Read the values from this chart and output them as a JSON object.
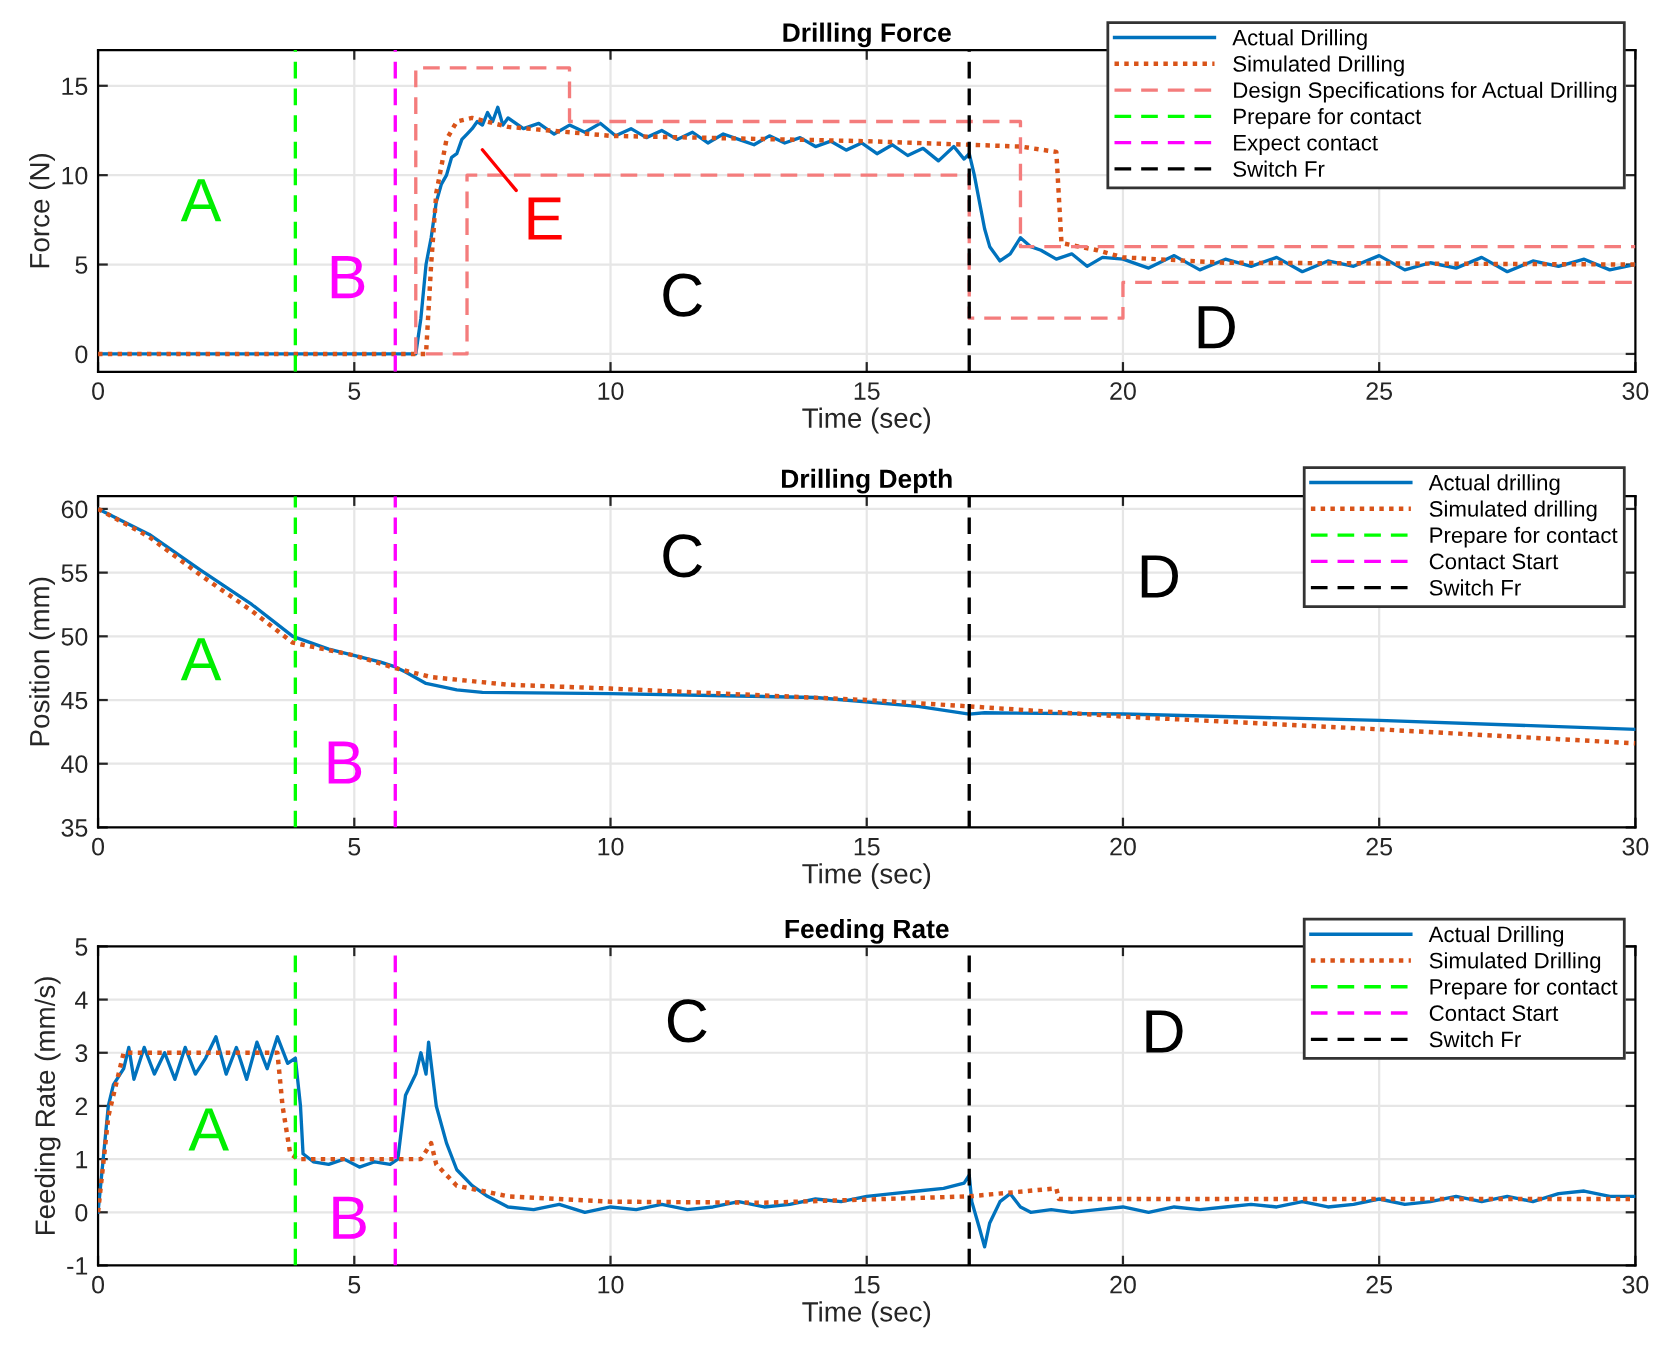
{
  "chart_data": [
    {
      "type": "line",
      "title": "Drilling Force",
      "xlabel": "Time (sec)",
      "ylabel": "Force (N)",
      "xlim": [
        0,
        30
      ],
      "ylim": [
        -1,
        17
      ],
      "xticks": [
        0,
        5,
        10,
        15,
        20,
        25,
        30
      ],
      "yticks": [
        0,
        5,
        10,
        15
      ],
      "grid": true,
      "legend": "top right",
      "marker": "none",
      "series": [
        {
          "name": "Actual Drilling",
          "color": "#0072bd",
          "line_style": "solid",
          "x": [
            0,
            6.2,
            6.3,
            6.4,
            6.5,
            6.6,
            6.7,
            6.8,
            6.9,
            7.0,
            7.1,
            7.2,
            7.3,
            7.4,
            7.5,
            7.6,
            7.7,
            7.8,
            7.9,
            8.0,
            8.3,
            8.6,
            8.9,
            9.2,
            9.5,
            9.8,
            10.1,
            10.4,
            10.7,
            11.0,
            11.3,
            11.6,
            11.9,
            12.2,
            12.5,
            12.8,
            13.1,
            13.4,
            13.7,
            14.0,
            14.3,
            14.6,
            14.9,
            15.2,
            15.5,
            15.8,
            16.1,
            16.4,
            16.7,
            16.9,
            17.0,
            17.1,
            17.2,
            17.3,
            17.4,
            17.6,
            17.8,
            18.0,
            18.2,
            18.4,
            18.7,
            19.0,
            19.3,
            19.6,
            20.0,
            20.5,
            21.0,
            21.5,
            22.0,
            22.5,
            23.0,
            23.5,
            24.0,
            24.5,
            25.0,
            25.5,
            26.0,
            26.5,
            27.0,
            27.5,
            28.0,
            28.5,
            29.0,
            29.5,
            30.0
          ],
          "values": [
            0,
            0,
            2,
            5,
            6.5,
            8.5,
            9.5,
            10,
            11,
            11.2,
            12,
            12.3,
            12.6,
            13,
            12.8,
            13.5,
            13,
            13.8,
            12.8,
            13.2,
            12.6,
            12.9,
            12.3,
            12.8,
            12.4,
            12.9,
            12.2,
            12.6,
            12.1,
            12.5,
            12.0,
            12.4,
            11.8,
            12.3,
            12.0,
            11.7,
            12.2,
            11.8,
            12.1,
            11.6,
            11.9,
            11.4,
            11.8,
            11.2,
            11.7,
            11.1,
            11.5,
            10.8,
            11.6,
            10.9,
            11.2,
            10,
            8.5,
            7,
            6,
            5.2,
            5.6,
            6.5,
            6,
            5.8,
            5.3,
            5.6,
            4.9,
            5.4,
            5.3,
            4.8,
            5.5,
            4.7,
            5.3,
            4.9,
            5.4,
            4.6,
            5.2,
            4.9,
            5.5,
            4.7,
            5.1,
            4.8,
            5.4,
            4.6,
            5.2,
            4.9,
            5.3,
            4.7,
            5.0
          ]
        },
        {
          "name": "Simulated Drilling",
          "color": "#d95319",
          "line_style": "dotted",
          "x": [
            0,
            6.4,
            6.5,
            6.6,
            6.8,
            7.0,
            7.3,
            8.0,
            10,
            15,
            18,
            18.7,
            18.8,
            19.5,
            20,
            22,
            30
          ],
          "values": [
            0,
            0,
            5,
            9,
            12,
            13,
            13.2,
            12.7,
            12.2,
            11.9,
            11.6,
            11.3,
            6.2,
            5.8,
            5.4,
            5.1,
            5.0
          ]
        },
        {
          "name": "Design Specifications for Actual Drilling",
          "color": "#f47c7c",
          "line_style": "dashed",
          "x": [
            6.2,
            6.2,
            9.2,
            9.2,
            18,
            18,
            30
          ],
          "values": [
            0,
            16,
            16,
            13,
            13,
            6,
            6
          ]
        },
        {
          "color": "#f47c7c",
          "line_style": "dashed",
          "x": [
            6.4,
            7.2,
            7.2,
            17,
            17,
            20,
            20,
            30
          ],
          "values": [
            0,
            0,
            10,
            10,
            2,
            2,
            4,
            4
          ]
        },
        {
          "name": "Prepare for contact",
          "color": "#00ff00",
          "line_style": "dashed",
          "x": [
            3.85,
            3.85
          ],
          "values": [
            -1,
            17
          ]
        },
        {
          "name": "Expect contact",
          "color": "#ff00ff",
          "line_style": "dashed",
          "x": [
            5.8,
            5.8
          ],
          "values": [
            -1,
            17
          ]
        },
        {
          "name": "Switch Fr",
          "color": "#000000",
          "line_style": "dashed",
          "x": [
            17,
            17
          ],
          "values": [
            -1,
            17
          ]
        }
      ],
      "annotations": [
        "A",
        "B",
        "C",
        "D",
        "E"
      ]
    },
    {
      "type": "line",
      "title": "Drilling Depth",
      "xlabel": "Time (sec)",
      "ylabel": "Position (mm)",
      "xlim": [
        0,
        30
      ],
      "ylim": [
        35,
        61
      ],
      "xticks": [
        0,
        5,
        10,
        15,
        20,
        25,
        30
      ],
      "yticks": [
        35,
        40,
        45,
        50,
        55,
        60
      ],
      "grid": true,
      "legend": "top right",
      "marker": "none",
      "series": [
        {
          "name": "Actual drilling",
          "color": "#0072bd",
          "line_style": "solid",
          "x": [
            0,
            1,
            2,
            3,
            3.8,
            4.5,
            5.5,
            5.8,
            6.0,
            6.4,
            7,
            7.5,
            10,
            14,
            16,
            17,
            17.3,
            20,
            25,
            30
          ],
          "values": [
            60,
            58,
            55.2,
            52.5,
            50,
            49,
            48,
            47.6,
            47.2,
            46.3,
            45.8,
            45.6,
            45.5,
            45.2,
            44.5,
            43.9,
            44.0,
            43.9,
            43.4,
            42.7
          ]
        },
        {
          "name": "Simulated drilling",
          "color": "#d95319",
          "line_style": "dotted",
          "x": [
            0,
            1,
            2,
            3,
            3.8,
            5,
            5.8,
            6.5,
            8,
            10,
            15,
            17,
            20,
            25,
            30
          ],
          "values": [
            60,
            57.8,
            54.8,
            52,
            49.5,
            48.5,
            47.5,
            46.8,
            46.2,
            45.9,
            45,
            44.5,
            43.7,
            42.7,
            41.6
          ]
        },
        {
          "name": "Prepare for contact",
          "color": "#00ff00",
          "line_style": "dashed",
          "x": [
            3.85,
            3.85
          ],
          "values": [
            35,
            61
          ]
        },
        {
          "name": "Contact Start",
          "color": "#ff00ff",
          "line_style": "dashed",
          "x": [
            5.8,
            5.8
          ],
          "values": [
            35,
            61
          ]
        },
        {
          "name": "Switch Fr",
          "color": "#000000",
          "line_style": "dashed",
          "x": [
            17,
            17
          ],
          "values": [
            35,
            61
          ]
        }
      ],
      "annotations": [
        "A",
        "B",
        "C",
        "D"
      ]
    },
    {
      "type": "line",
      "title": "Feeding Rate",
      "xlabel": "Time (sec)",
      "ylabel": "Feeding Rate (mm/s)",
      "xlim": [
        0,
        30
      ],
      "ylim": [
        -1,
        5
      ],
      "xticks": [
        0,
        5,
        10,
        15,
        20,
        25,
        30
      ],
      "yticks": [
        -1,
        0,
        1,
        2,
        3,
        4,
        5
      ],
      "grid": true,
      "legend": "top right",
      "marker": "none",
      "series": [
        {
          "name": "Actual Drilling",
          "color": "#0072bd",
          "line_style": "solid",
          "x": [
            0,
            0.1,
            0.2,
            0.3,
            0.5,
            0.6,
            0.7,
            0.9,
            1.1,
            1.3,
            1.5,
            1.7,
            1.9,
            2.1,
            2.3,
            2.5,
            2.7,
            2.9,
            3.1,
            3.3,
            3.5,
            3.7,
            3.85,
            3.95,
            4.0,
            4.2,
            4.5,
            4.8,
            5.1,
            5.4,
            5.7,
            5.85,
            6.0,
            6.2,
            6.3,
            6.4,
            6.45,
            6.6,
            6.8,
            7.0,
            7.3,
            7.6,
            8.0,
            8.5,
            9,
            9.5,
            10,
            10.5,
            11,
            11.5,
            12,
            12.5,
            13,
            13.5,
            14,
            14.5,
            15,
            15.5,
            16,
            16.5,
            16.9,
            17.0,
            17.05,
            17.2,
            17.3,
            17.4,
            17.6,
            17.8,
            18.0,
            18.2,
            18.6,
            19,
            19.5,
            20,
            20.5,
            21,
            21.5,
            22,
            22.5,
            23,
            23.5,
            24,
            24.5,
            25,
            25.5,
            26,
            26.5,
            27,
            27.5,
            28,
            28.5,
            29,
            29.5,
            30
          ],
          "values": [
            0,
            1,
            2,
            2.4,
            2.7,
            3.1,
            2.5,
            3.1,
            2.6,
            3.0,
            2.5,
            3.1,
            2.6,
            2.9,
            3.3,
            2.6,
            3.1,
            2.5,
            3.2,
            2.7,
            3.3,
            2.8,
            2.9,
            2,
            1.1,
            0.95,
            0.9,
            1.0,
            0.85,
            0.95,
            0.9,
            1.0,
            2.2,
            2.6,
            3.0,
            2.6,
            3.2,
            2.0,
            1.3,
            0.8,
            0.5,
            0.3,
            0.1,
            0.05,
            0.15,
            0.0,
            0.1,
            0.05,
            0.15,
            0.05,
            0.1,
            0.2,
            0.1,
            0.15,
            0.25,
            0.2,
            0.3,
            0.35,
            0.4,
            0.45,
            0.55,
            0.7,
            0.2,
            -0.3,
            -0.65,
            -0.2,
            0.2,
            0.35,
            0.1,
            0.0,
            0.05,
            0.0,
            0.05,
            0.1,
            0.0,
            0.1,
            0.05,
            0.1,
            0.15,
            0.1,
            0.2,
            0.1,
            0.15,
            0.25,
            0.15,
            0.2,
            0.3,
            0.2,
            0.3,
            0.2,
            0.35,
            0.4,
            0.3,
            0.3
          ]
        },
        {
          "name": "Simulated Drilling",
          "color": "#d95319",
          "line_style": "dotted",
          "x": [
            0,
            0.2,
            0.5,
            3.5,
            3.6,
            3.75,
            3.9,
            6.3,
            6.5,
            6.6,
            7,
            8,
            10,
            13,
            17,
            18.7,
            18.75,
            30
          ],
          "values": [
            0,
            1.8,
            3,
            3,
            2,
            1.1,
            1,
            1,
            1.3,
            0.9,
            0.5,
            0.3,
            0.2,
            0.18,
            0.3,
            0.45,
            0.25,
            0.25
          ]
        },
        {
          "name": "Prepare for contact",
          "color": "#00ff00",
          "line_style": "dashed",
          "x": [
            3.85,
            3.85
          ],
          "values": [
            -1,
            5
          ]
        },
        {
          "name": "Contact Start",
          "color": "#ff00ff",
          "line_style": "dashed",
          "x": [
            5.8,
            5.8
          ],
          "values": [
            -1,
            5
          ]
        },
        {
          "name": "Switch Fr",
          "color": "#000000",
          "line_style": "dashed",
          "x": [
            17,
            17
          ],
          "values": [
            -1,
            5
          ]
        }
      ],
      "annotations": [
        "A",
        "B",
        "C",
        "D"
      ]
    }
  ]
}
